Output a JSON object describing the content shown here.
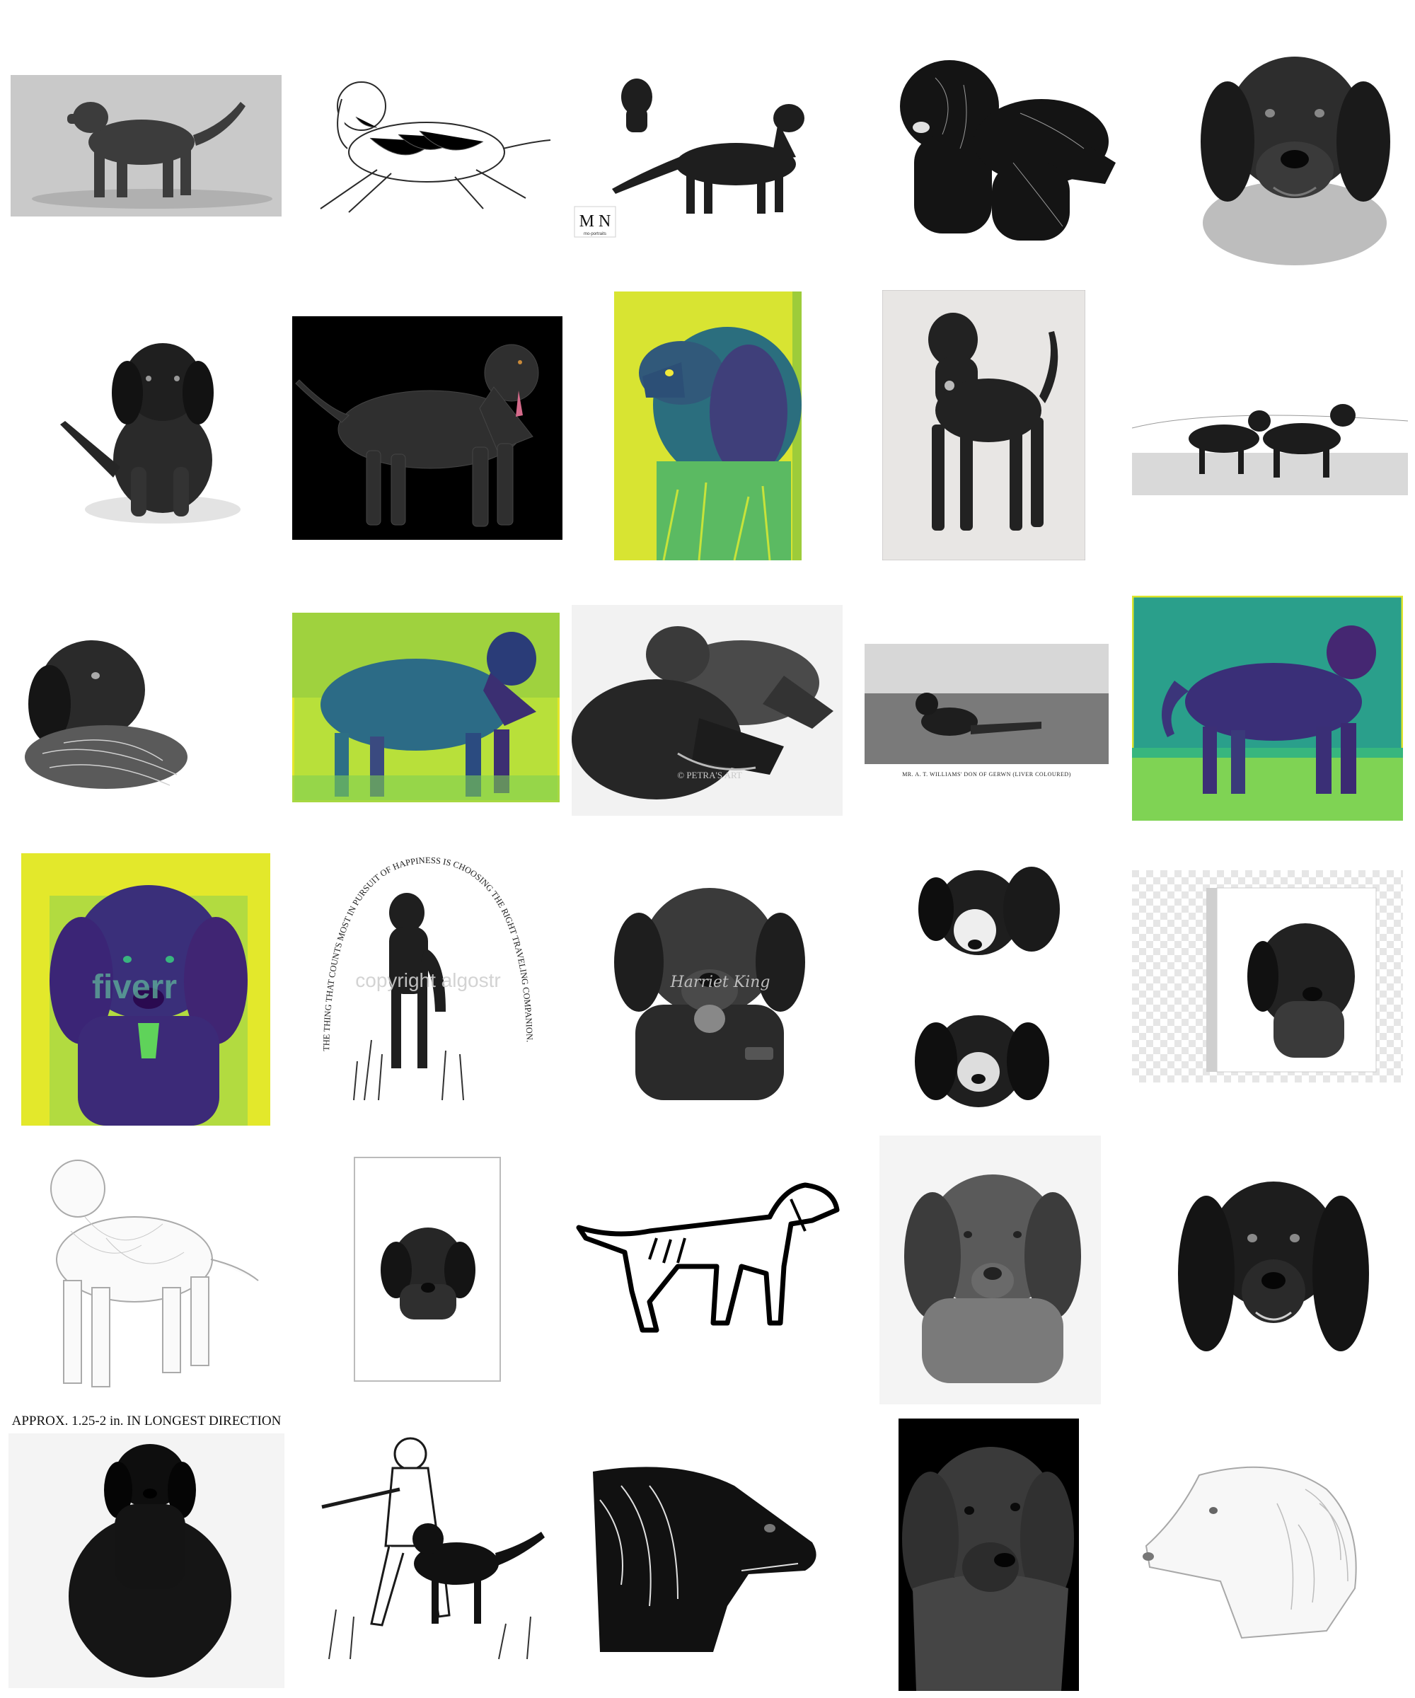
{
  "grid": {
    "tiles": [
      {
        "id": "r1c1",
        "style": "gray-photo"
      },
      {
        "id": "r1c2",
        "style": "pencil-sketch"
      },
      {
        "id": "r1c3",
        "style": "ink-drawing",
        "logo_text": "M N",
        "logo_caption": "mo-portraits"
      },
      {
        "id": "r1c4",
        "style": "scratchboard"
      },
      {
        "id": "r1c5",
        "style": "charcoal-portrait"
      },
      {
        "id": "r2c1",
        "style": "pencil-puppy"
      },
      {
        "id": "r2c2",
        "style": "digital-on-black"
      },
      {
        "id": "r2c3",
        "style": "viridis-canvas"
      },
      {
        "id": "r2c4",
        "style": "pencil-standing"
      },
      {
        "id": "r2c5",
        "style": "etching-pair"
      },
      {
        "id": "r3c1",
        "style": "ink-with-bird"
      },
      {
        "id": "r3c2",
        "style": "viridis-photo"
      },
      {
        "id": "r3c3",
        "style": "graphite-pair",
        "watermark": "© PETRA'S ART"
      },
      {
        "id": "r3c4",
        "style": "vintage-photo",
        "caption": "MR. A. T. WILLIAMS' DON OF GERWN (LIVER COLOURED)"
      },
      {
        "id": "r3c5",
        "style": "viridis-photo"
      },
      {
        "id": "r4c1",
        "style": "viridis-portrait",
        "watermark": "fiverr"
      },
      {
        "id": "r4c2",
        "style": "arched-text",
        "arch_text": "THE THING THAT COUNTS MOST IN PURSUIT OF HAPPINESS IS CHOOSING THE RIGHT TRAVELING COMPANION.",
        "watermark": "copyright algostr"
      },
      {
        "id": "r4c3",
        "style": "graphite-portrait",
        "signature": "Harriet King"
      },
      {
        "id": "r4c4",
        "style": "ink-two-heads"
      },
      {
        "id": "r4c5",
        "style": "canvas-mockup"
      },
      {
        "id": "r5c1",
        "style": "light-pencil"
      },
      {
        "id": "r5c2",
        "style": "framed-print"
      },
      {
        "id": "r5c3",
        "style": "vector-silhouette"
      },
      {
        "id": "r5c4",
        "style": "soft-pencil"
      },
      {
        "id": "r5c5",
        "style": "charcoal-portrait"
      },
      {
        "id": "r6c1",
        "style": "figurine",
        "caption": "APPROX. 1.25-2 in. IN LONGEST DIRECTION"
      },
      {
        "id": "r6c2",
        "style": "hunter-ink"
      },
      {
        "id": "r6c3",
        "style": "ink-profile"
      },
      {
        "id": "r6c4",
        "style": "digital-on-black"
      },
      {
        "id": "r6c5",
        "style": "light-pencil"
      }
    ]
  }
}
